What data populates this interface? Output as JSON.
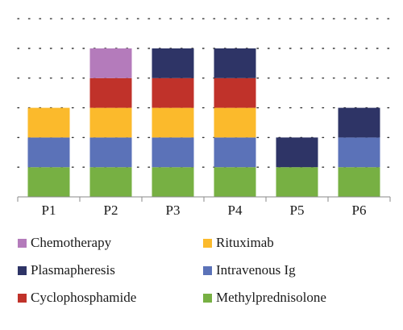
{
  "chart_data": {
    "type": "bar",
    "stacked": true,
    "categories": [
      "P1",
      "P2",
      "P3",
      "P4",
      "P5",
      "P6"
    ],
    "series": [
      {
        "name": "Methylprednisolone",
        "color": "#77b043",
        "values": [
          1,
          1,
          1,
          1,
          1,
          1
        ]
      },
      {
        "name": "Intravenous Ig",
        "color": "#5b72b8",
        "values": [
          1,
          1,
          1,
          1,
          0,
          1
        ]
      },
      {
        "name": "Rituximab",
        "color": "#fbba2c",
        "values": [
          1,
          1,
          1,
          1,
          0,
          0
        ]
      },
      {
        "name": "Cyclophosphamide",
        "color": "#c0322a",
        "values": [
          0,
          1,
          1,
          1,
          0,
          0
        ]
      },
      {
        "name": "Plasmapheresis",
        "color": "#2e3466",
        "values": [
          0,
          0,
          1,
          1,
          1,
          1
        ]
      },
      {
        "name": "Chemotherapy",
        "color": "#b47bbb",
        "values": [
          0,
          1,
          0,
          0,
          0,
          0
        ]
      }
    ],
    "ylim": [
      0,
      6
    ],
    "grid": "dotted-horizontal",
    "legend_position": "bottom",
    "legend_order": [
      "Chemotherapy",
      "Rituximab",
      "Plasmapheresis",
      "Intravenous Ig",
      "Cyclophosphamide",
      "Methylprednisolone"
    ]
  }
}
